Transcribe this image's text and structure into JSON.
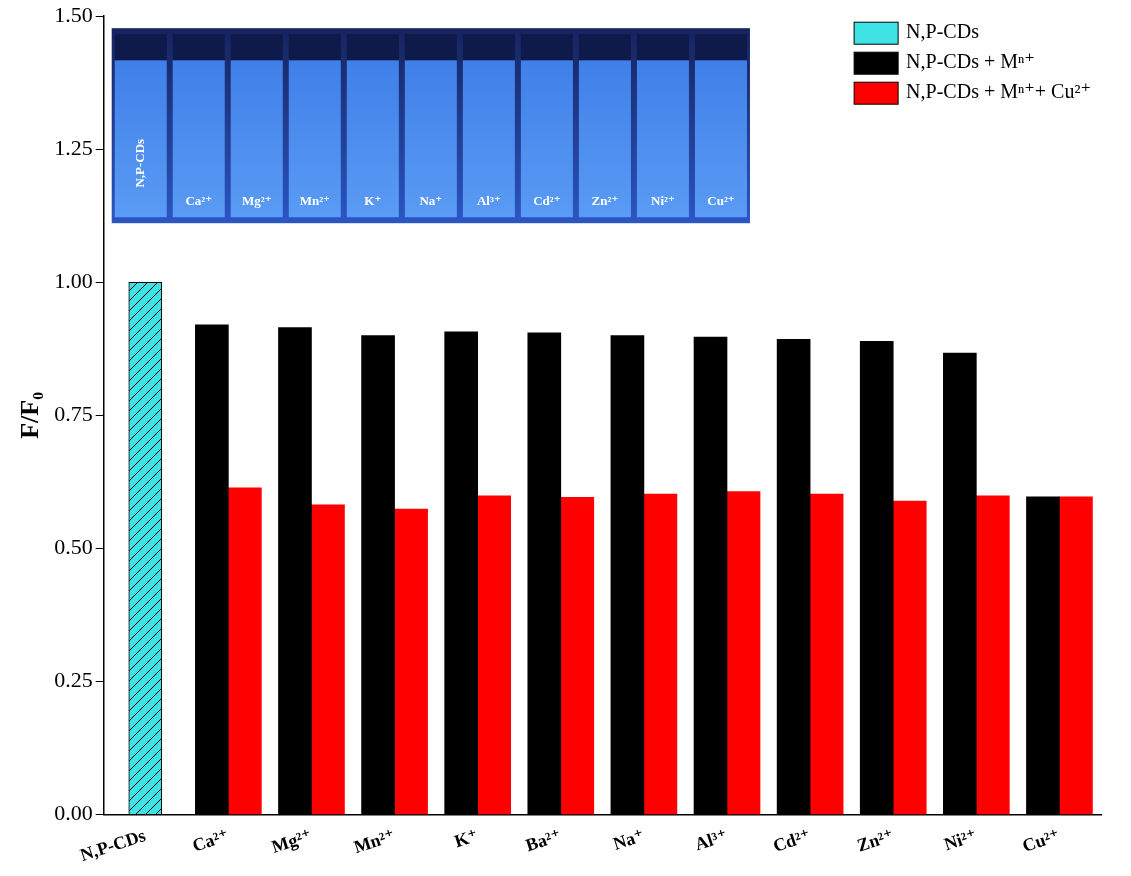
{
  "chart_data": {
    "type": "bar",
    "categories": [
      "N,P-CDs",
      "Ca²⁺",
      "Mg²⁺",
      "Mn²⁺",
      "K⁺",
      "Ba²⁺",
      "Na⁺",
      "Al³⁺",
      "Cd²⁺",
      "Zn²⁺",
      "Ni²⁺",
      "Cu²⁺"
    ],
    "series": [
      {
        "name": "N,P-CDs",
        "color": "#3fe3e6",
        "values": [
          1.0,
          null,
          null,
          null,
          null,
          null,
          null,
          null,
          null,
          null,
          null,
          null
        ]
      },
      {
        "name": "N,P-CDs + Mⁿ⁺",
        "color": "#000000",
        "values": [
          null,
          0.92,
          0.915,
          0.9,
          0.907,
          0.905,
          0.9,
          0.897,
          0.893,
          0.889,
          0.867,
          0.597
        ]
      },
      {
        "name": "N,P-CDs + Mⁿ⁺+ Cu²⁺",
        "color": "#ff0000",
        "values": [
          null,
          0.614,
          0.582,
          0.574,
          0.599,
          0.596,
          0.602,
          0.607,
          0.602,
          0.589,
          0.599,
          0.597
        ]
      }
    ],
    "y_label": "F/F₀",
    "ylim": [
      0,
      1.5
    ],
    "yticks": [
      {
        "value": 0,
        "label": "0.00"
      },
      {
        "value": 0.25,
        "label": "0.25"
      },
      {
        "value": 0.5,
        "label": "0.50"
      },
      {
        "value": 0.75,
        "label": "0.75"
      },
      {
        "value": 1.0,
        "label": "1.00"
      },
      {
        "value": 1.25,
        "label": "1.25"
      },
      {
        "value": 1.5,
        "label": "1.50"
      }
    ],
    "grid": false,
    "legend": "upper right",
    "annotations": [
      "N,P-CDs",
      "Ca²⁺",
      "Mg²⁺",
      "Mn²⁺",
      "K⁺",
      "Na⁺",
      "Al³⁺",
      "Cd²⁺",
      "Zn²⁺",
      "Ni²⁺",
      "Cu²⁺"
    ]
  }
}
